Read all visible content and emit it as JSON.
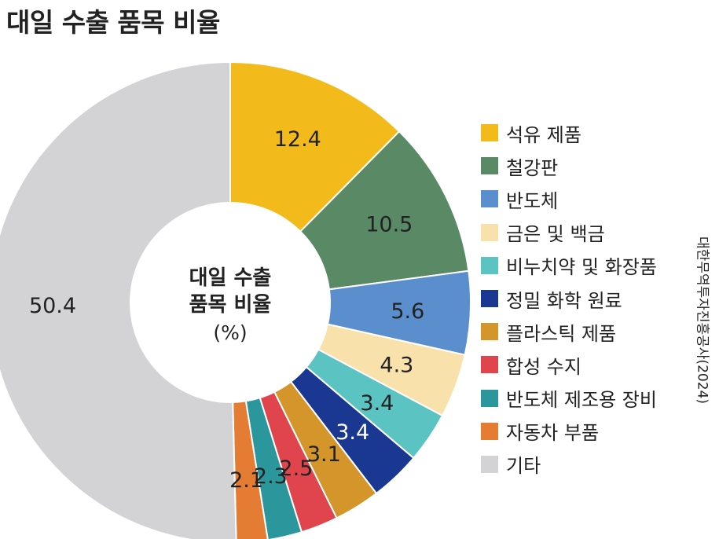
{
  "title": "대일 수출 품목 비율",
  "source": "대한무역투자진흥공사(2024)",
  "chart_data": {
    "type": "pie",
    "donut": true,
    "center_label_lines": [
      "대일 수출",
      "품목 비율"
    ],
    "center_unit": "(%)",
    "legend_position": "right",
    "categories": [
      "석유 제품",
      "철강판",
      "반도체",
      "금은 및 백금",
      "비누치약 및 화장품",
      "정밀 화학 원료",
      "플라스틱 제품",
      "합성 수지",
      "반도체 제조용 장비",
      "자동차 부품",
      "기타"
    ],
    "values": [
      12.4,
      10.5,
      5.6,
      4.3,
      3.4,
      3.4,
      3.1,
      2.5,
      2.3,
      2.1,
      50.4
    ],
    "labels": [
      "12.4",
      "10.5",
      "5.6",
      "4.3",
      "3.4",
      "3.4",
      "3.1",
      "2.5",
      "2.3",
      "2.1",
      "50.4"
    ],
    "colors": [
      "#F3BA1C",
      "#5A8A65",
      "#5B8ECC",
      "#F9E1AC",
      "#5CC3C3",
      "#1A3791",
      "#D4962A",
      "#E0454E",
      "#2B979D",
      "#E47C33",
      "#D3D3D5"
    ],
    "label_colors": [
      "#222222",
      "#222222",
      "#222222",
      "#222222",
      "#222222",
      "#ffffff",
      "#222222",
      "#222222",
      "#222222",
      "#222222",
      "#222222"
    ]
  }
}
